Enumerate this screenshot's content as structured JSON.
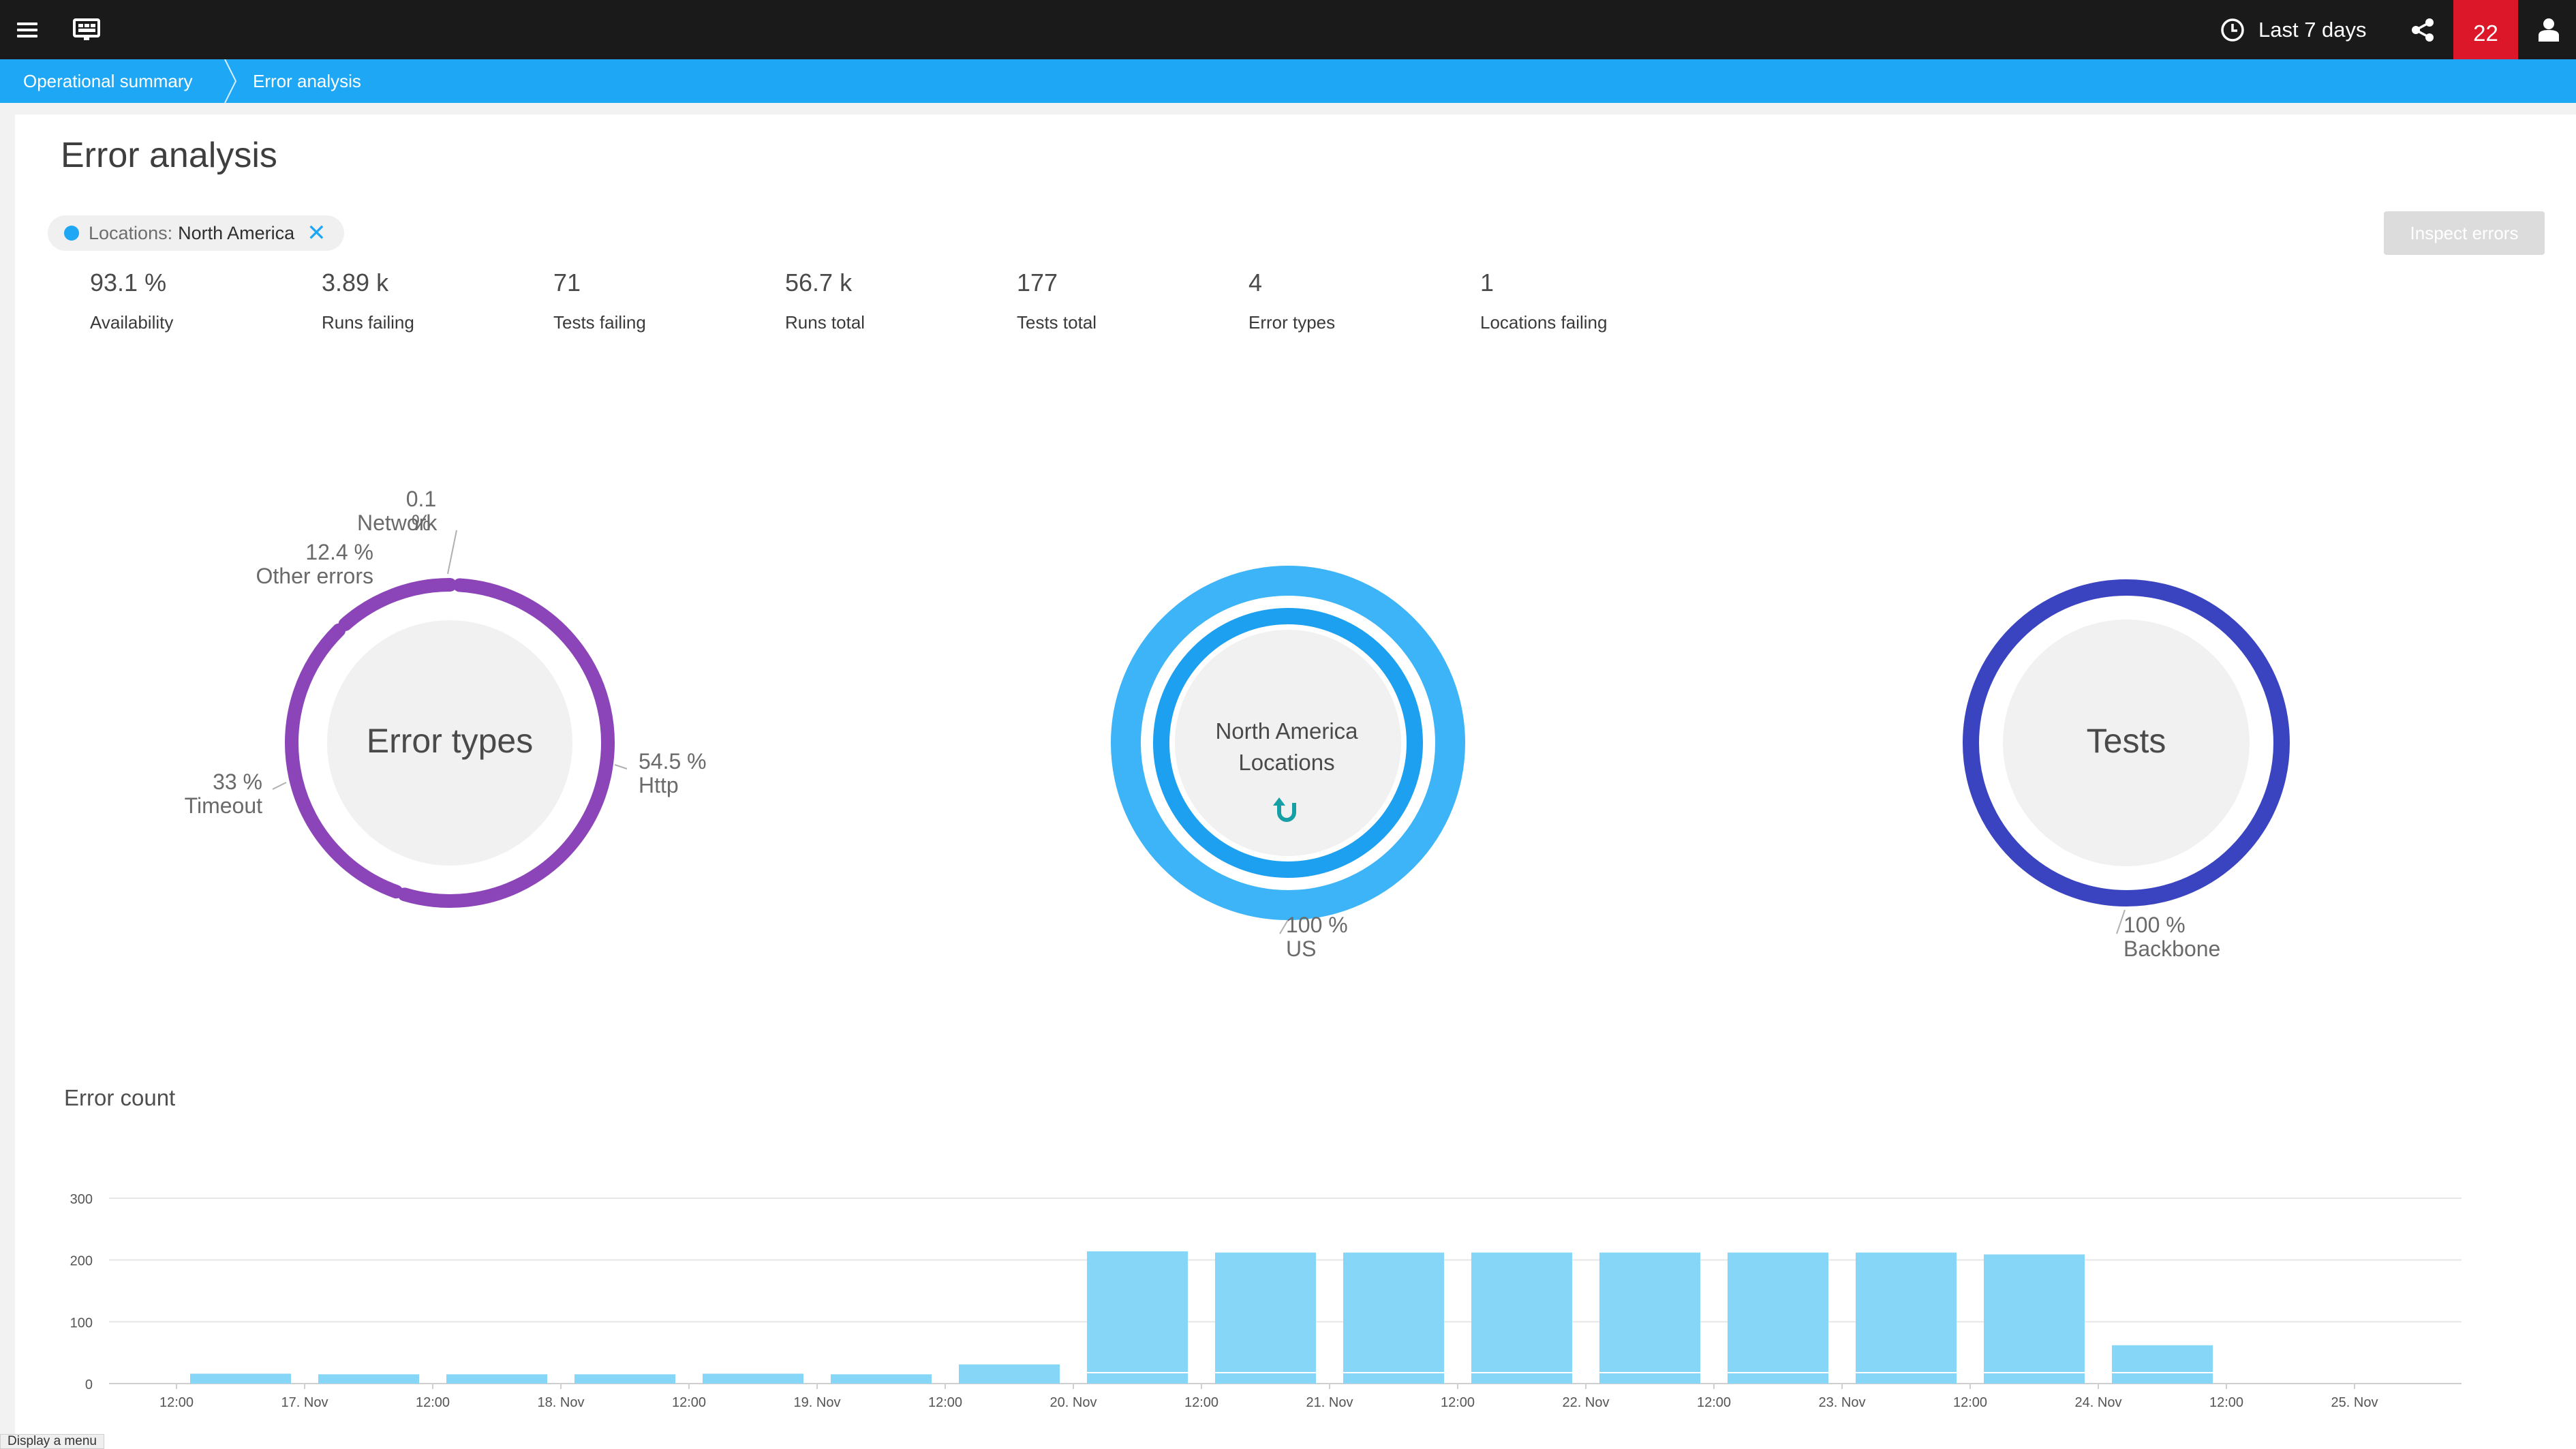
{
  "topbar": {
    "menu_icon": "hamburger-icon",
    "dashboard_icon": "dashboard-icon",
    "timeframe_icon": "clock-icon",
    "timeframe_label": "Last 7 days",
    "share_icon": "share-icon",
    "notifications_count": "22",
    "user_icon": "user-icon"
  },
  "breadcrumb": {
    "items": [
      "Operational summary",
      "Error analysis"
    ]
  },
  "page": {
    "title": "Error analysis",
    "filter": {
      "key": "Locations:",
      "value": "North America"
    },
    "inspect_button": "Inspect errors"
  },
  "kpis": [
    {
      "value": "93.1 %",
      "label": "Availability"
    },
    {
      "value": "3.89 k",
      "label": "Runs failing"
    },
    {
      "value": "71",
      "label": "Tests failing"
    },
    {
      "value": "56.7 k",
      "label": "Runs total"
    },
    {
      "value": "177",
      "label": "Tests total"
    },
    {
      "value": "4",
      "label": "Error types"
    },
    {
      "value": "1",
      "label": "Locations failing"
    }
  ],
  "donuts": {
    "error_types": {
      "center": "Error types",
      "color": "#8c45b9",
      "segments": [
        {
          "name": "Http",
          "pct": "54.5 %",
          "share": 54.5
        },
        {
          "name": "Timeout",
          "pct": "33 %",
          "share": 33.0
        },
        {
          "name": "Other errors",
          "pct": "12.4 %",
          "share": 12.4
        },
        {
          "name": "Network",
          "pct": "0.1 %",
          "share": 0.1
        }
      ]
    },
    "locations": {
      "center_line1": "North America",
      "center_line2": "Locations",
      "drill_up_icon": "drill-up-icon",
      "outer_color": "#3cb4f7",
      "inner_color": "#1ea0f0",
      "segment": {
        "name": "US",
        "pct": "100 %"
      }
    },
    "tests": {
      "center": "Tests",
      "color": "#3a44c0",
      "segment": {
        "name": "Backbone",
        "pct": "100 %"
      }
    }
  },
  "chart_data": {
    "type": "bar",
    "title": "Error count",
    "ylim": [
      0,
      300
    ],
    "yticks": [
      0,
      100,
      200,
      300
    ],
    "x_tick_labels": [
      "12:00",
      "17. Nov",
      "12:00",
      "18. Nov",
      "12:00",
      "19. Nov",
      "12:00",
      "20. Nov",
      "12:00",
      "21. Nov",
      "12:00",
      "22. Nov",
      "12:00",
      "23. Nov",
      "12:00",
      "24. Nov",
      "12:00",
      "25. Nov"
    ],
    "bar_color": "#85d6f7",
    "grid": true,
    "categories": [
      "17. Nov 00:00",
      "17. Nov 12:00",
      "18. Nov 00:00",
      "18. Nov 12:00",
      "19. Nov 00:00",
      "19. Nov 12:00",
      "20. Nov 00:00",
      "20. Nov 12:00",
      "21. Nov 00:00",
      "21. Nov 12:00",
      "22. Nov 00:00",
      "22. Nov 12:00",
      "23. Nov 00:00",
      "23. Nov 12:00",
      "24. Nov 00:00",
      "24. Nov 12:00"
    ],
    "values": [
      16,
      15,
      15,
      15,
      16,
      15,
      31,
      214,
      212,
      212,
      212,
      212,
      212,
      212,
      209,
      62
    ]
  },
  "footer": {
    "tooltip": "Display a menu"
  }
}
